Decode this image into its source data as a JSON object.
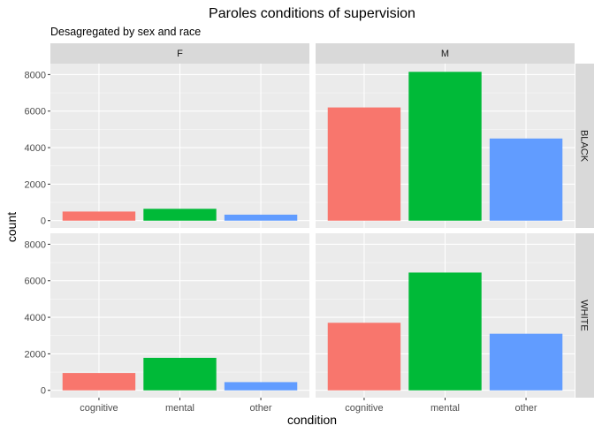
{
  "chart_data": {
    "type": "bar",
    "title": "Paroles conditions of supervision",
    "subtitle": "Desagregated by sex and race",
    "xlabel": "condition",
    "ylabel": "count",
    "categories": [
      "cognitive",
      "mental",
      "other"
    ],
    "ylim": [
      -400,
      8600
    ],
    "yticks": [
      0,
      2000,
      4000,
      6000,
      8000
    ],
    "grid": true,
    "facet_columns": [
      "F",
      "M"
    ],
    "facet_rows": [
      "BLACK",
      "WHITE"
    ],
    "colors": {
      "cognitive": "#F8766D",
      "mental": "#00BA38",
      "other": "#619CFF",
      "panel": "#EBEBEB",
      "strip": "#D9D9D9",
      "grid": "#FFFFFF"
    },
    "panels": [
      {
        "sex": "F",
        "race": "BLACK",
        "values": [
          500,
          650,
          330
        ]
      },
      {
        "sex": "M",
        "race": "BLACK",
        "values": [
          6200,
          8150,
          4500
        ]
      },
      {
        "sex": "F",
        "race": "WHITE",
        "values": [
          950,
          1780,
          450
        ]
      },
      {
        "sex": "M",
        "race": "WHITE",
        "values": [
          3700,
          6450,
          3100
        ]
      }
    ]
  }
}
